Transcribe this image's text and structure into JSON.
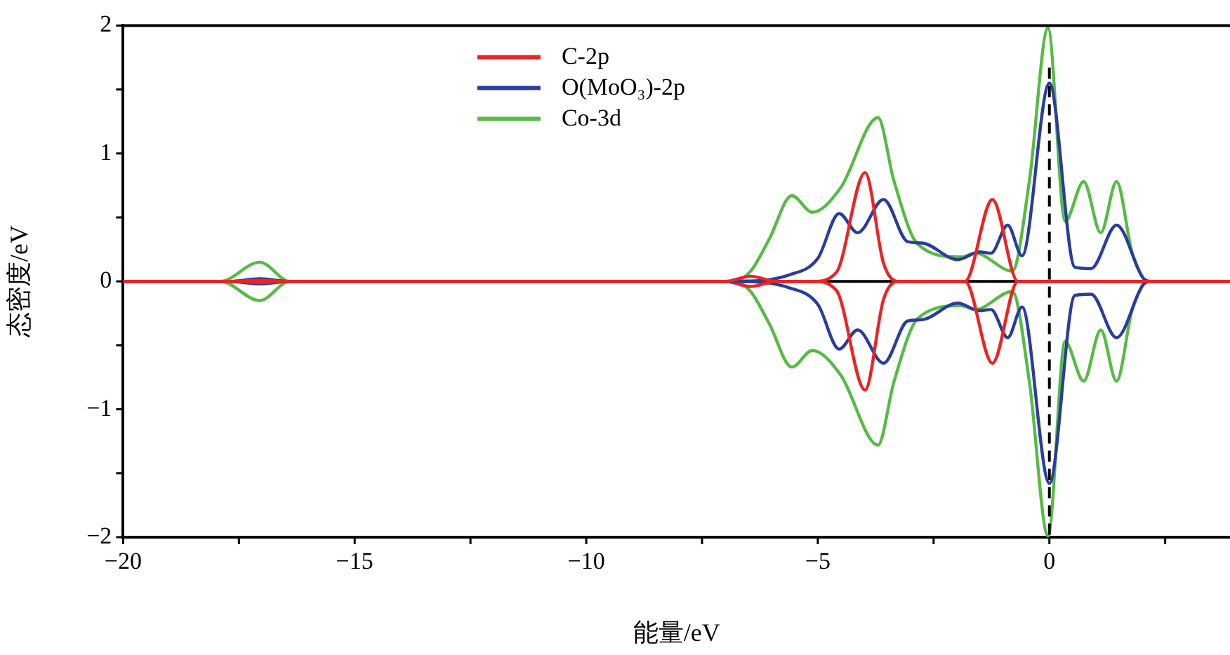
{
  "chart_data": {
    "type": "line",
    "xlabel": "能量/eV",
    "ylabel": "态密度/eV",
    "xlim": [
      -20,
      3.9
    ],
    "xticks": [
      -20,
      {
        "value": -17.5,
        "label": null
      },
      -15,
      {
        "value": -12.5,
        "label": null
      },
      -10,
      {
        "value": -7.5,
        "label": null
      },
      -5,
      {
        "value": -2.5,
        "label": null
      },
      0,
      {
        "value": 2.5,
        "label": null
      }
    ],
    "ylim": [
      -2,
      2
    ],
    "yticks": [
      -2,
      {
        "value": -1.5,
        "label": null
      },
      -1,
      {
        "value": -0.5,
        "label": null
      },
      0,
      {
        "value": 0.5,
        "label": null
      },
      1,
      {
        "value": 1.5,
        "label": null
      },
      2
    ],
    "grid": false,
    "legend": "top",
    "marker": "none",
    "line_style": "solid",
    "ref_lines": [
      {
        "axis": "y",
        "value": 0,
        "color": "#000000",
        "line_style": "solid",
        "label": null
      },
      {
        "axis": "x",
        "value": 0,
        "color": "#000000",
        "line_style": "dashed",
        "label": null
      }
    ],
    "series": [
      {
        "name": "C-2p",
        "color": "#ee2222",
        "x": [
          -20,
          -17.6,
          -17.05,
          -16.5,
          -7,
          -6.45,
          -5.9,
          -5.1,
          -4.6,
          -3.98,
          -3.58,
          -3.27,
          -1.82,
          -1.23,
          -0.68,
          3.9
        ],
        "values": [
          0,
          0,
          0.01,
          0,
          0,
          0.04,
          0,
          0,
          0.07,
          0.85,
          0.14,
          0,
          0,
          0.64,
          0,
          0
        ]
      },
      {
        "name": "O(MoO₃)-2p",
        "color": "#2a3c9c",
        "x": [
          -20,
          -17.7,
          -17.05,
          -16.4,
          -6.82,
          -5.62,
          -5.0,
          -4.54,
          -4.14,
          -3.58,
          -3.06,
          -2.75,
          -1.98,
          -1.51,
          -1.26,
          -0.9,
          -0.59,
          0,
          0.55,
          0.9,
          1.45,
          2.04,
          2.2,
          3.9
        ],
        "values": [
          0,
          0,
          0.02,
          0,
          0,
          0.05,
          0.18,
          0.53,
          0.38,
          0.64,
          0.31,
          0.3,
          0.17,
          0.23,
          0.22,
          0.44,
          0.2,
          1.55,
          0.11,
          0.1,
          0.44,
          0.02,
          0,
          0
        ]
      },
      {
        "name": "Co-3d",
        "color": "#55bb44",
        "x": [
          -20,
          -17.9,
          -17.05,
          -16.4,
          -6.82,
          -6.45,
          -6.05,
          -5.56,
          -5.12,
          -4.51,
          -3.7,
          -3.36,
          -2.84,
          -1.91,
          -1.6,
          -0.8,
          -0.43,
          -0.03,
          0.34,
          0.74,
          1.11,
          1.45,
          1.79,
          2.13,
          3.9
        ],
        "values": [
          0,
          0,
          0.15,
          0,
          0,
          0.08,
          0.33,
          0.67,
          0.54,
          0.73,
          1.28,
          0.79,
          0.29,
          0.19,
          0.22,
          0.08,
          0.79,
          1.98,
          0.47,
          0.78,
          0.38,
          0.78,
          0.22,
          0,
          0
        ]
      },
      {
        "color": "#ee2222",
        "x": [
          -20,
          -17.6,
          -17.05,
          -16.5,
          -7,
          -6.45,
          -5.9,
          -5.1,
          -4.6,
          -3.98,
          -3.58,
          -3.27,
          -1.82,
          -1.23,
          -0.68,
          3.9
        ],
        "values": [
          0,
          0,
          -0.01,
          0,
          0,
          -0.04,
          0,
          0,
          -0.07,
          -0.85,
          -0.14,
          0,
          0,
          -0.64,
          0,
          0
        ]
      },
      {
        "color": "#2a3c9c",
        "x": [
          -20,
          -17.7,
          -17.05,
          -16.4,
          -6.82,
          -5.62,
          -5.0,
          -4.54,
          -4.14,
          -3.58,
          -3.06,
          -2.75,
          -1.98,
          -1.51,
          -1.26,
          -0.9,
          -0.59,
          0,
          0.55,
          0.9,
          1.45,
          2.04,
          2.2,
          3.9
        ],
        "values": [
          0,
          0,
          -0.02,
          0,
          0,
          -0.05,
          -0.18,
          -0.53,
          -0.38,
          -0.64,
          -0.31,
          -0.3,
          -0.17,
          -0.23,
          -0.22,
          -0.44,
          -0.2,
          -1.58,
          -0.11,
          -0.1,
          -0.44,
          -0.02,
          0,
          0
        ]
      },
      {
        "color": "#55bb44",
        "x": [
          -20,
          -17.9,
          -17.05,
          -16.4,
          -6.82,
          -6.45,
          -6.05,
          -5.56,
          -5.12,
          -4.51,
          -3.7,
          -3.36,
          -2.84,
          -1.91,
          -1.6,
          -0.8,
          -0.43,
          -0.03,
          0.34,
          0.74,
          1.11,
          1.45,
          1.79,
          2.13,
          3.9
        ],
        "values": [
          0,
          0,
          -0.15,
          0,
          0,
          -0.08,
          -0.33,
          -0.67,
          -0.54,
          -0.73,
          -1.28,
          -0.79,
          -0.29,
          -0.19,
          -0.22,
          -0.08,
          -0.79,
          -1.99,
          -0.47,
          -0.78,
          -0.38,
          -0.78,
          -0.22,
          0,
          0
        ]
      }
    ]
  }
}
